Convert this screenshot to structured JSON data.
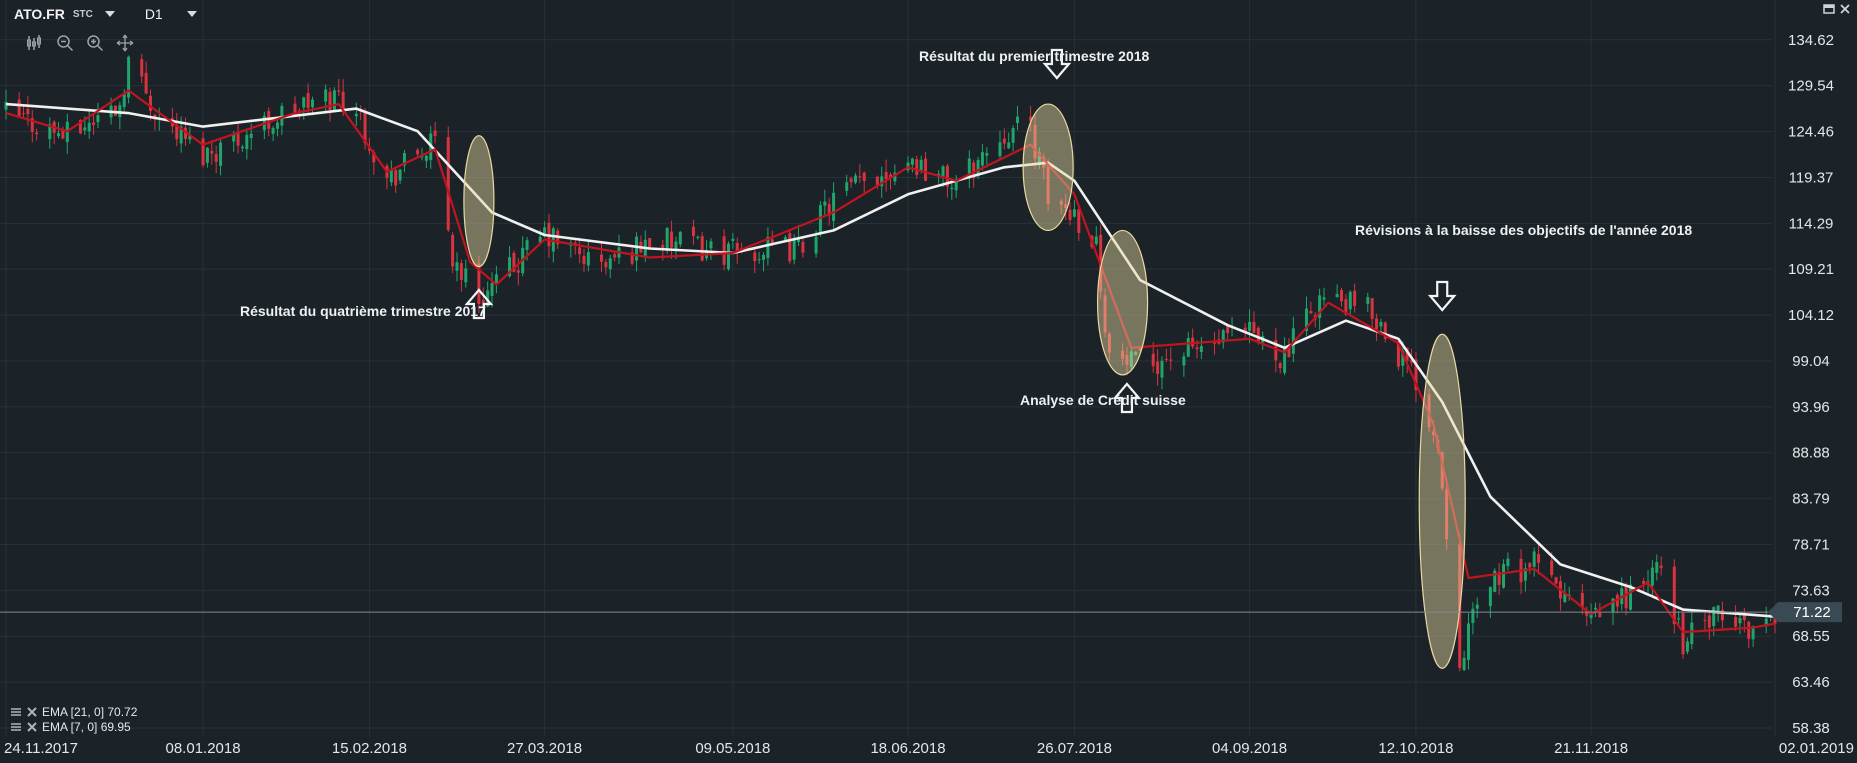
{
  "header": {
    "symbol": "ATO.FR",
    "type_label": "STC",
    "timeframe": "D1"
  },
  "icons": [
    "candles-icon",
    "zoom-out-icon",
    "zoom-in-icon",
    "crosshair-icon",
    "restore-icon",
    "close-icon"
  ],
  "colors": {
    "background": "#1b2328",
    "grid": "#26323a",
    "bull": "#1fa56b",
    "bear": "#d8333f",
    "ema_fast": "#c0141f",
    "ema_slow": "#f0f0f0",
    "highlight": "#e9d9a0",
    "price_tag": "#3a4a54"
  },
  "indicators": [
    {
      "label": "EMA [21, 0] 70.72"
    },
    {
      "label": "EMA [7, 0] 69.95"
    }
  ],
  "annotations": {
    "q4_2017": "Résultat du quatrième trimestre 2017",
    "q1_2018": "Résultat du premier trimestre 2018",
    "credit_suisse": "Analyse de Crédit suisse",
    "revisions": "Révisions à la baisse des objectifs de l'année 2018"
  },
  "chart_data": {
    "type": "candlestick",
    "title": "",
    "xlabel": "",
    "ylabel": "",
    "ylim": [
      58.38,
      137.7
    ],
    "grid": true,
    "y_ticks": [
      "134.62",
      "129.54",
      "124.46",
      "119.37",
      "114.29",
      "109.21",
      "104.12",
      "99.04",
      "93.96",
      "88.88",
      "83.79",
      "78.71",
      "73.63",
      "68.55",
      "63.46",
      "58.38"
    ],
    "x_ticks": [
      "24.11.2017",
      "08.01.2018",
      "15.02.2018",
      "27.03.2018",
      "09.05.2018",
      "18.06.2018",
      "26.07.2018",
      "04.09.2018",
      "12.10.2018",
      "21.11.2018",
      "02.01.2019"
    ],
    "x_range": [
      "24.11.2017",
      "02.01.2019"
    ],
    "last_price": "71.22",
    "price_path": [
      [
        "24.11.2017",
        126.5
      ],
      [
        "08.12.2017",
        124.0
      ],
      [
        "20.12.2017",
        127.5
      ],
      [
        "22.12.2017",
        132.5
      ],
      [
        "29.12.2017",
        126.0
      ],
      [
        "08.01.2018",
        122.0
      ],
      [
        "15.01.2018",
        123.5
      ],
      [
        "29.01.2018",
        127.0
      ],
      [
        "08.02.2018",
        128.5
      ],
      [
        "12.02.2018",
        127.0
      ],
      [
        "19.02.2018",
        119.0
      ],
      [
        "26.02.2018",
        122.0
      ],
      [
        "02.03.2018",
        123.0
      ],
      [
        "06.03.2018",
        110.5
      ],
      [
        "12.03.2018",
        106.0
      ],
      [
        "16.03.2018",
        107.5
      ],
      [
        "27.03.2018",
        113.0
      ],
      [
        "09.04.2018",
        109.5
      ],
      [
        "20.04.2018",
        112.5
      ],
      [
        "09.05.2018",
        111.0
      ],
      [
        "24.05.2018",
        111.5
      ],
      [
        "01.06.2018",
        117.0
      ],
      [
        "18.06.2018",
        121.5
      ],
      [
        "29.06.2018",
        118.5
      ],
      [
        "10.07.2018",
        124.5
      ],
      [
        "16.07.2018",
        125.0
      ],
      [
        "20.07.2018",
        117.0
      ],
      [
        "26.07.2018",
        115.5
      ],
      [
        "31.07.2018",
        112.0
      ],
      [
        "03.08.2018",
        99.5
      ],
      [
        "09.08.2018",
        98.5
      ],
      [
        "04.09.2018",
        102.0
      ],
      [
        "12.09.2018",
        99.5
      ],
      [
        "20.09.2018",
        106.0
      ],
      [
        "02.10.2018",
        104.5
      ],
      [
        "12.10.2018",
        97.0
      ],
      [
        "17.10.2018",
        90.0
      ],
      [
        "22.10.2018",
        66.5
      ],
      [
        "29.10.2018",
        75.0
      ],
      [
        "08.11.2018",
        76.5
      ],
      [
        "21.11.2018",
        70.0
      ],
      [
        "30.11.2018",
        73.5
      ],
      [
        "07.12.2018",
        76.0
      ],
      [
        "12.12.2018",
        68.0
      ],
      [
        "19.12.2018",
        70.5
      ],
      [
        "28.12.2018",
        69.5
      ],
      [
        "02.01.2019",
        71.2
      ]
    ],
    "series": [
      {
        "name": "EMA [21, 0] 70.72",
        "color": "#f0f0f0",
        "points": [
          [
            "24.11.2017",
            127.5
          ],
          [
            "22.12.2017",
            126.5
          ],
          [
            "08.01.2018",
            125.0
          ],
          [
            "12.02.2018",
            127.0
          ],
          [
            "26.02.2018",
            124.5
          ],
          [
            "15.03.2018",
            115.5
          ],
          [
            "27.03.2018",
            113.0
          ],
          [
            "20.04.2018",
            111.5
          ],
          [
            "09.05.2018",
            111.0
          ],
          [
            "01.06.2018",
            113.5
          ],
          [
            "18.06.2018",
            117.5
          ],
          [
            "10.07.2018",
            120.5
          ],
          [
            "20.07.2018",
            121.0
          ],
          [
            "26.07.2018",
            119.0
          ],
          [
            "10.08.2018",
            108.0
          ],
          [
            "30.08.2018",
            103.0
          ],
          [
            "12.09.2018",
            100.5
          ],
          [
            "26.09.2018",
            103.5
          ],
          [
            "08.10.2018",
            101.5
          ],
          [
            "18.10.2018",
            94.5
          ],
          [
            "29.10.2018",
            84.0
          ],
          [
            "14.11.2018",
            76.5
          ],
          [
            "30.11.2018",
            74.0
          ],
          [
            "12.12.2018",
            71.5
          ],
          [
            "02.01.2019",
            70.72
          ]
        ]
      },
      {
        "name": "EMA [7, 0] 69.95",
        "color": "#c0141f",
        "points": [
          [
            "24.11.2017",
            126.5
          ],
          [
            "08.12.2017",
            124.5
          ],
          [
            "22.12.2017",
            129.0
          ],
          [
            "08.01.2018",
            123.0
          ],
          [
            "29.01.2018",
            126.5
          ],
          [
            "08.02.2018",
            127.5
          ],
          [
            "19.02.2018",
            120.0
          ],
          [
            "02.03.2018",
            122.5
          ],
          [
            "10.03.2018",
            110.0
          ],
          [
            "16.03.2018",
            107.5
          ],
          [
            "27.03.2018",
            112.5
          ],
          [
            "20.04.2018",
            110.5
          ],
          [
            "09.05.2018",
            111.0
          ],
          [
            "01.06.2018",
            115.5
          ],
          [
            "18.06.2018",
            120.5
          ],
          [
            "29.06.2018",
            119.0
          ],
          [
            "16.07.2018",
            123.0
          ],
          [
            "26.07.2018",
            117.5
          ],
          [
            "08.08.2018",
            100.5
          ],
          [
            "04.09.2018",
            101.5
          ],
          [
            "12.09.2018",
            100.0
          ],
          [
            "22.09.2018",
            105.5
          ],
          [
            "08.10.2018",
            101.0
          ],
          [
            "16.10.2018",
            92.0
          ],
          [
            "24.10.2018",
            75.0
          ],
          [
            "08.11.2018",
            76.0
          ],
          [
            "21.11.2018",
            71.0
          ],
          [
            "04.12.2018",
            74.5
          ],
          [
            "12.12.2018",
            69.0
          ],
          [
            "28.12.2018",
            69.5
          ],
          [
            "02.01.2019",
            69.95
          ]
        ]
      }
    ],
    "highlights": [
      {
        "date": "12.03.2018",
        "low": 109.5,
        "high": 124.0
      },
      {
        "date": "20.07.2018",
        "low": 113.5,
        "high": 127.5
      },
      {
        "date": "06.08.2018",
        "low": 97.5,
        "high": 113.5
      },
      {
        "date": "18.10.2018",
        "low": 65.0,
        "high": 102.0
      }
    ],
    "arrows": [
      {
        "date": "12.03.2018",
        "direction": "up"
      },
      {
        "date": "22.07.2018",
        "direction": "down"
      },
      {
        "date": "07.08.2018",
        "direction": "up"
      },
      {
        "date": "18.10.2018",
        "direction": "down"
      }
    ]
  }
}
